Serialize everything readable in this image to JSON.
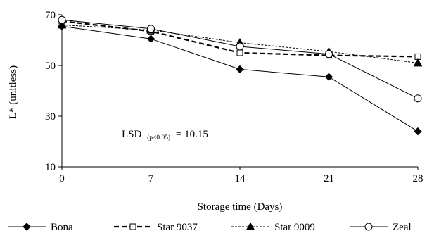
{
  "chart_data": {
    "type": "line",
    "xlabel": "Storage time (Days)",
    "ylabel": "L* (unitless)",
    "x": [
      0,
      7,
      14,
      21,
      28
    ],
    "xlim": [
      0,
      28
    ],
    "ylim": [
      10,
      70
    ],
    "xticks": [
      "0",
      "7",
      "14",
      "21",
      "28"
    ],
    "yticks": [
      "10",
      "30",
      "50",
      "70"
    ],
    "grid": false,
    "legend_position": "bottom",
    "series": [
      {
        "name": "Bona",
        "values": [
          65.5,
          60.5,
          48.5,
          45.5,
          24.0
        ],
        "marker": "diamond",
        "line": "solid"
      },
      {
        "name": "Star 9037",
        "values": [
          67.5,
          63.5,
          55.0,
          54.0,
          53.5
        ],
        "marker": "open-square",
        "line": "dashed"
      },
      {
        "name": "Star 9009",
        "values": [
          66.0,
          64.0,
          59.0,
          55.5,
          51.0
        ],
        "marker": "triangle",
        "line": "dotted"
      },
      {
        "name": "Zeal",
        "values": [
          68.0,
          64.5,
          57.5,
          54.5,
          37.0
        ],
        "marker": "open-circle",
        "line": "solid"
      }
    ],
    "annotation": {
      "main": "LSD",
      "subscript": "(p<0.05)",
      "value": "= 10.15"
    }
  }
}
